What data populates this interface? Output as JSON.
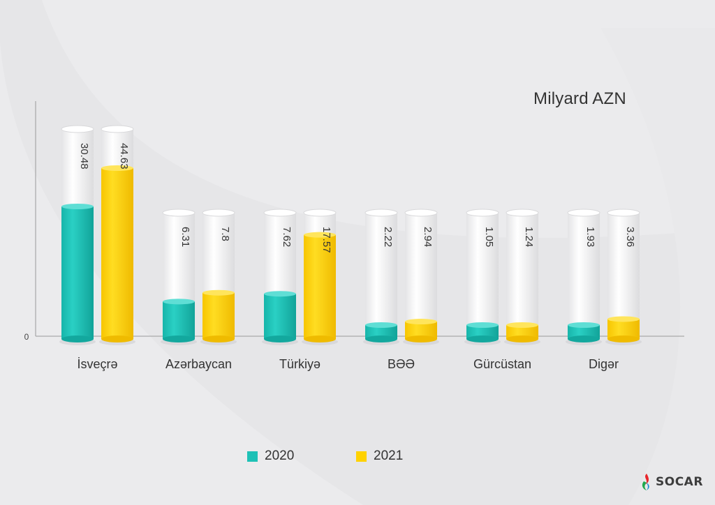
{
  "unit_label": "Milyard AZN",
  "chart_data": {
    "type": "bar",
    "categories": [
      "İsveçrə",
      "Azərbaycan",
      "Türkiyə",
      "BƏƏ",
      "Gürcüstan",
      "Digər"
    ],
    "series": [
      {
        "name": "2020",
        "color": "#1ec1b6",
        "values": [
          30.48,
          6.31,
          7.62,
          2.22,
          1.05,
          1.93
        ],
        "labels": [
          "30.48",
          "6.31",
          "7.62",
          "2.22",
          "1.05",
          "1.93"
        ]
      },
      {
        "name": "2021",
        "color": "#ffd200",
        "values": [
          44.63,
          7.8,
          17.57,
          2.94,
          1.24,
          3.36
        ],
        "labels": [
          "44.63",
          "7.8",
          "17.57",
          "2.94",
          "1.24",
          "3.36"
        ]
      }
    ],
    "y_tick_label": "0",
    "legend_position": "bottom",
    "grid": false
  },
  "legend": {
    "items": [
      {
        "label": "2020",
        "color": "#1ec1b6"
      },
      {
        "label": "2021",
        "color": "#ffd200"
      }
    ]
  },
  "logo": {
    "text": "SOCAR",
    "icon": "socar-flame-icon"
  }
}
